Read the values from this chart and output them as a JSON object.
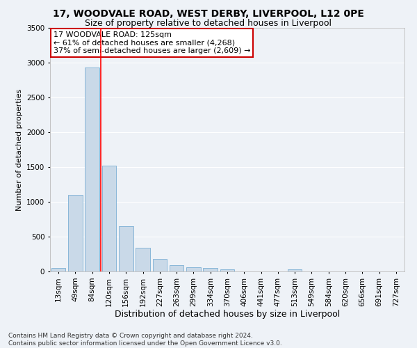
{
  "title1": "17, WOODVALE ROAD, WEST DERBY, LIVERPOOL, L12 0PE",
  "title2": "Size of property relative to detached houses in Liverpool",
  "xlabel": "Distribution of detached houses by size in Liverpool",
  "ylabel": "Number of detached properties",
  "footnote": "Contains HM Land Registry data © Crown copyright and database right 2024.\nContains public sector information licensed under the Open Government Licence v3.0.",
  "bin_labels": [
    "13sqm",
    "49sqm",
    "84sqm",
    "120sqm",
    "156sqm",
    "192sqm",
    "227sqm",
    "263sqm",
    "299sqm",
    "334sqm",
    "370sqm",
    "406sqm",
    "441sqm",
    "477sqm",
    "513sqm",
    "549sqm",
    "584sqm",
    "620sqm",
    "656sqm",
    "691sqm",
    "727sqm"
  ],
  "bar_values": [
    50,
    1100,
    2930,
    1520,
    650,
    340,
    185,
    90,
    65,
    50,
    30,
    0,
    0,
    0,
    30,
    0,
    0,
    0,
    0,
    0,
    0
  ],
  "bar_color": "#c9d9e8",
  "bar_edgecolor": "#7bafd4",
  "red_line_x": 2.5,
  "annotation_text": "17 WOODVALE ROAD: 125sqm\n← 61% of detached houses are smaller (4,268)\n37% of semi-detached houses are larger (2,609) →",
  "annotation_box_facecolor": "#ffffff",
  "annotation_box_edgecolor": "#cc0000",
  "ylim": [
    0,
    3500
  ],
  "yticks": [
    0,
    500,
    1000,
    1500,
    2000,
    2500,
    3000,
    3500
  ],
  "fig_facecolor": "#eef2f7",
  "ax_facecolor": "#eef2f7",
  "grid_color": "#ffffff",
  "title1_fontsize": 10,
  "title2_fontsize": 9,
  "xlabel_fontsize": 9,
  "ylabel_fontsize": 8,
  "tick_fontsize": 7.5,
  "annot_fontsize": 8,
  "footnote_fontsize": 6.5
}
